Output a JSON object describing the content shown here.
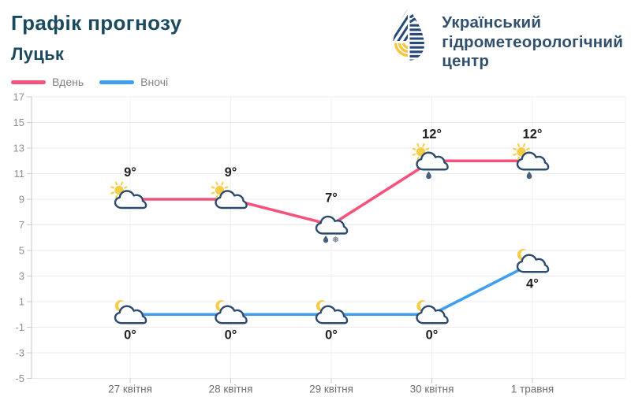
{
  "header": {
    "title": "Графік прогнозу",
    "city": "Луцьк"
  },
  "logo": {
    "line1": "Український",
    "line2": "гідрометеорологічний",
    "line3": "центр"
  },
  "colors": {
    "brand_navy": "#1b4a5f",
    "logo_navy": "#274a78",
    "logo_yellow": "#f8c63d",
    "day_pink": "#f4547c",
    "night_blue": "#3f9ef0",
    "sun_yellow": "#f6cd48",
    "cloud_outline": "#2d4a6e",
    "cloud_fill": "#fbfdff",
    "raindrop": "#46617d",
    "snowflake": "#5f7386",
    "grid_line": "#ebebeb",
    "axis_line": "#c9c9c9",
    "tick_label": "#8f8f8f",
    "category_label": "#6e6e6e",
    "value_label": "#222222"
  },
  "icon_glyphs": {
    "snowflake": "❅"
  },
  "chart_data": {
    "type": "line",
    "title": "Графік прогнозу Луцьк",
    "categories": [
      "27 квітня",
      "28 квітня",
      "29 квітня",
      "30 квітня",
      "1 травня"
    ],
    "series": [
      {
        "name": "Вдень",
        "color": "#f4547c",
        "values": [
          9,
          9,
          7,
          12,
          12
        ],
        "labels": [
          "9°",
          "9°",
          "7°",
          "12°",
          "12°"
        ],
        "label_position": "above",
        "icons": [
          "sun-cloud",
          "sun-cloud",
          "cloud-rain-snow",
          "sun-cloud-rain",
          "sun-cloud-rain"
        ]
      },
      {
        "name": "Вночі",
        "color": "#3f9ef0",
        "values": [
          0,
          0,
          0,
          0,
          4
        ],
        "labels": [
          "0°",
          "0°",
          "0°",
          "0°",
          "4°"
        ],
        "label_position": "below",
        "icons": [
          "moon-cloud",
          "moon-cloud",
          "moon-cloud",
          "moon-cloud",
          "moon-cloud"
        ]
      }
    ],
    "xlabel": "",
    "ylabel": "",
    "ylim": [
      -5,
      17
    ],
    "ytick_step": 2,
    "yticks": [
      17,
      15,
      13,
      11,
      9,
      7,
      5,
      3,
      1,
      -1,
      -3,
      -5
    ],
    "grid": true,
    "legend_position": "top-left"
  }
}
